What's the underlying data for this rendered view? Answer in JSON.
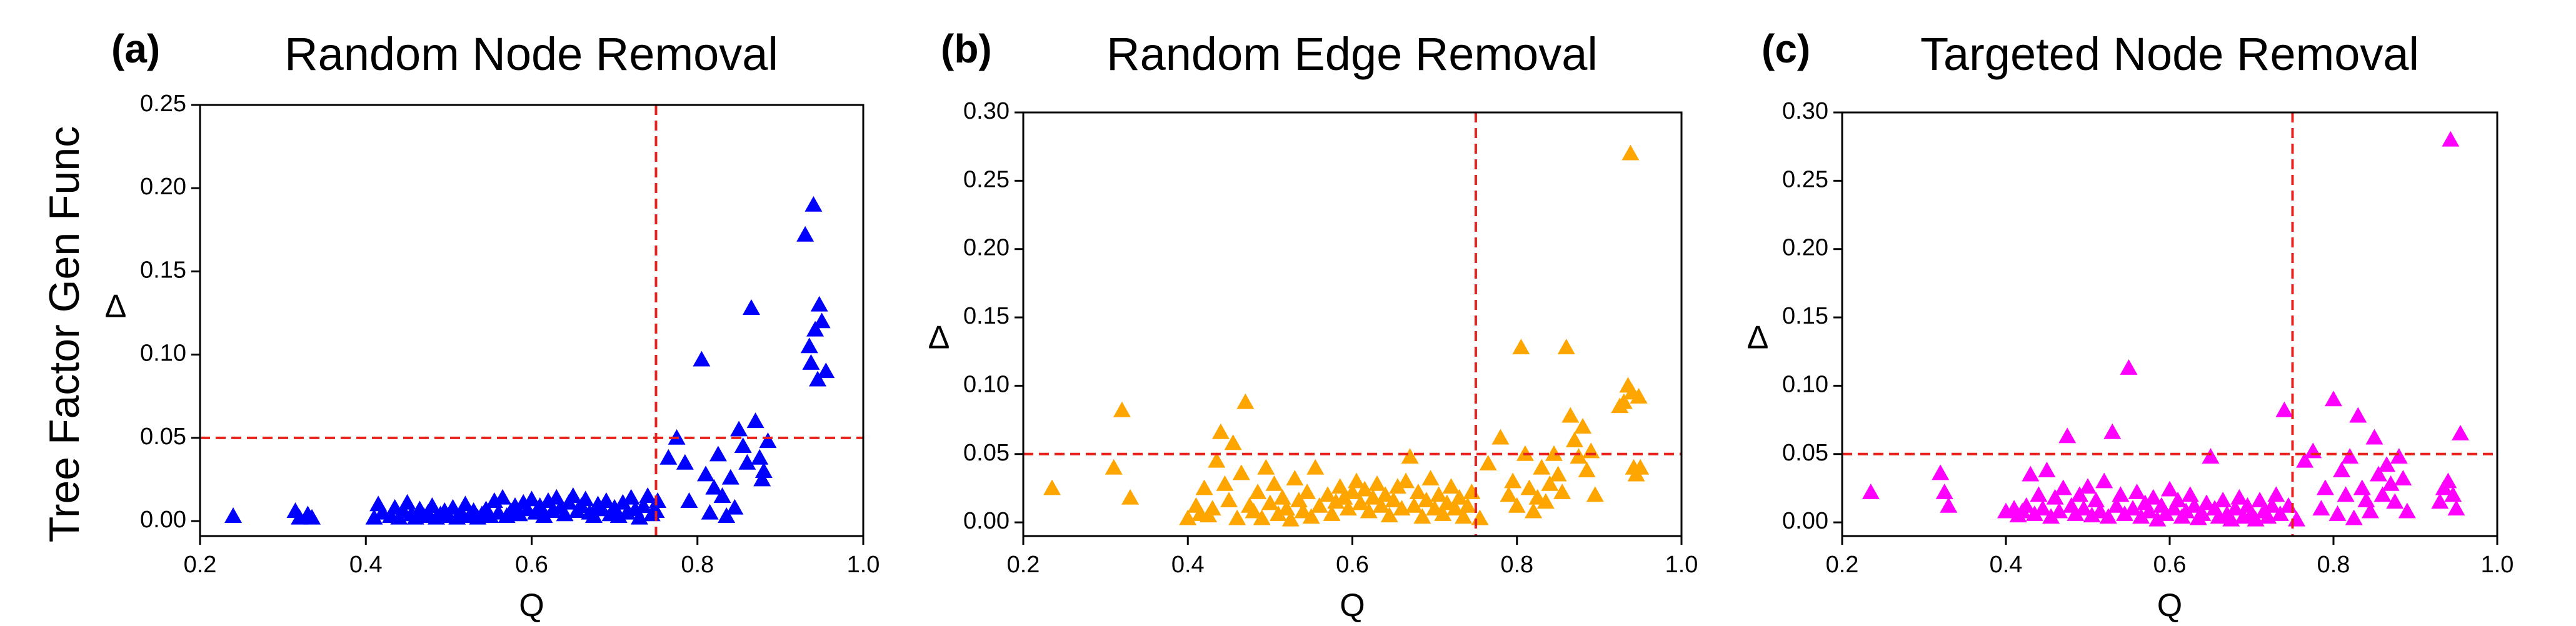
{
  "row_label": "Tree Factor Gen Func",
  "threshold_color": "#e8211c",
  "chart_data": [
    {
      "type": "scatter",
      "panel": "(a)",
      "title": "Random Node Removal",
      "xlabel": "Q",
      "ylabel": "Δ",
      "xlim": [
        0.2,
        1.0
      ],
      "ylim": [
        -0.009,
        0.25
      ],
      "xticks": [
        "0.2",
        "0.4",
        "0.6",
        "0.8",
        "1.0"
      ],
      "yticks": [
        "0.00",
        "0.05",
        "0.10",
        "0.15",
        "0.20",
        "0.25"
      ],
      "marker": "triangle",
      "color": "#0000ff",
      "thresholds": {
        "x": 0.75,
        "y": 0.05
      },
      "grid": false,
      "points": [
        [
          0.24,
          0.003
        ],
        [
          0.315,
          0.006
        ],
        [
          0.32,
          0.002
        ],
        [
          0.33,
          0.004
        ],
        [
          0.335,
          0.002
        ],
        [
          0.41,
          0.002
        ],
        [
          0.415,
          0.01
        ],
        [
          0.42,
          0.005
        ],
        [
          0.43,
          0.003
        ],
        [
          0.435,
          0.008
        ],
        [
          0.44,
          0.002
        ],
        [
          0.445,
          0.006
        ],
        [
          0.45,
          0.011
        ],
        [
          0.455,
          0.004
        ],
        [
          0.46,
          0.002
        ],
        [
          0.465,
          0.007
        ],
        [
          0.47,
          0.003
        ],
        [
          0.475,
          0.005
        ],
        [
          0.48,
          0.009
        ],
        [
          0.485,
          0.002
        ],
        [
          0.49,
          0.004
        ],
        [
          0.495,
          0.006
        ],
        [
          0.5,
          0.003
        ],
        [
          0.505,
          0.008
        ],
        [
          0.51,
          0.002
        ],
        [
          0.515,
          0.005
        ],
        [
          0.52,
          0.01
        ],
        [
          0.525,
          0.003
        ],
        [
          0.53,
          0.006
        ],
        [
          0.535,
          0.002
        ],
        [
          0.54,
          0.004
        ],
        [
          0.545,
          0.007
        ],
        [
          0.55,
          0.003
        ],
        [
          0.555,
          0.012
        ],
        [
          0.56,
          0.005
        ],
        [
          0.565,
          0.014
        ],
        [
          0.57,
          0.003
        ],
        [
          0.575,
          0.006
        ],
        [
          0.58,
          0.009
        ],
        [
          0.585,
          0.004
        ],
        [
          0.59,
          0.011
        ],
        [
          0.595,
          0.007
        ],
        [
          0.6,
          0.013
        ],
        [
          0.605,
          0.005
        ],
        [
          0.61,
          0.009
        ],
        [
          0.615,
          0.003
        ],
        [
          0.62,
          0.012
        ],
        [
          0.625,
          0.006
        ],
        [
          0.63,
          0.014
        ],
        [
          0.635,
          0.008
        ],
        [
          0.64,
          0.004
        ],
        [
          0.645,
          0.011
        ],
        [
          0.65,
          0.015
        ],
        [
          0.655,
          0.006
        ],
        [
          0.66,
          0.009
        ],
        [
          0.665,
          0.013
        ],
        [
          0.67,
          0.005
        ],
        [
          0.675,
          0.003
        ],
        [
          0.68,
          0.01
        ],
        [
          0.685,
          0.007
        ],
        [
          0.69,
          0.012
        ],
        [
          0.695,
          0.004
        ],
        [
          0.7,
          0.008
        ],
        [
          0.705,
          0.003
        ],
        [
          0.71,
          0.011
        ],
        [
          0.715,
          0.005
        ],
        [
          0.72,
          0.014
        ],
        [
          0.725,
          0.007
        ],
        [
          0.73,
          0.002
        ],
        [
          0.735,
          0.009
        ],
        [
          0.74,
          0.015
        ],
        [
          0.745,
          0.004
        ],
        [
          0.75,
          0.006
        ],
        [
          0.752,
          0.012
        ],
        [
          0.765,
          0.038
        ],
        [
          0.775,
          0.05
        ],
        [
          0.785,
          0.035
        ],
        [
          0.79,
          0.012
        ],
        [
          0.805,
          0.097
        ],
        [
          0.81,
          0.028
        ],
        [
          0.815,
          0.005
        ],
        [
          0.82,
          0.02
        ],
        [
          0.825,
          0.04
        ],
        [
          0.83,
          0.015
        ],
        [
          0.835,
          0.003
        ],
        [
          0.84,
          0.026
        ],
        [
          0.845,
          0.008
        ],
        [
          0.85,
          0.055
        ],
        [
          0.855,
          0.045
        ],
        [
          0.86,
          0.035
        ],
        [
          0.865,
          0.128
        ],
        [
          0.87,
          0.06
        ],
        [
          0.875,
          0.038
        ],
        [
          0.878,
          0.025
        ],
        [
          0.88,
          0.03
        ],
        [
          0.885,
          0.048
        ],
        [
          0.93,
          0.172
        ],
        [
          0.935,
          0.105
        ],
        [
          0.937,
          0.095
        ],
        [
          0.94,
          0.19
        ],
        [
          0.942,
          0.115
        ],
        [
          0.945,
          0.085
        ],
        [
          0.947,
          0.13
        ],
        [
          0.95,
          0.12
        ],
        [
          0.955,
          0.09
        ]
      ]
    },
    {
      "type": "scatter",
      "panel": "(b)",
      "title": "Random Edge Removal",
      "xlabel": "Q",
      "ylabel": "Δ",
      "xlim": [
        0.2,
        1.0
      ],
      "ylim": [
        -0.01,
        0.3
      ],
      "xticks": [
        "0.2",
        "0.4",
        "0.6",
        "0.8",
        "1.0"
      ],
      "yticks": [
        "0.00",
        "0.05",
        "0.10",
        "0.15",
        "0.20",
        "0.25",
        "0.30"
      ],
      "marker": "triangle",
      "color": "#ffa500",
      "thresholds": {
        "x": 0.75,
        "y": 0.05
      },
      "grid": false,
      "points": [
        [
          0.235,
          0.025
        ],
        [
          0.31,
          0.04
        ],
        [
          0.32,
          0.082
        ],
        [
          0.33,
          0.018
        ],
        [
          0.4,
          0.003
        ],
        [
          0.41,
          0.012
        ],
        [
          0.415,
          0.006
        ],
        [
          0.42,
          0.025
        ],
        [
          0.425,
          0.005
        ],
        [
          0.43,
          0.01
        ],
        [
          0.435,
          0.045
        ],
        [
          0.44,
          0.066
        ],
        [
          0.445,
          0.028
        ],
        [
          0.45,
          0.016
        ],
        [
          0.455,
          0.058
        ],
        [
          0.46,
          0.003
        ],
        [
          0.465,
          0.036
        ],
        [
          0.47,
          0.088
        ],
        [
          0.475,
          0.012
        ],
        [
          0.48,
          0.008
        ],
        [
          0.485,
          0.022
        ],
        [
          0.49,
          0.003
        ],
        [
          0.495,
          0.04
        ],
        [
          0.5,
          0.014
        ],
        [
          0.505,
          0.028
        ],
        [
          0.51,
          0.006
        ],
        [
          0.515,
          0.018
        ],
        [
          0.52,
          0.01
        ],
        [
          0.525,
          0.002
        ],
        [
          0.53,
          0.032
        ],
        [
          0.535,
          0.016
        ],
        [
          0.54,
          0.008
        ],
        [
          0.545,
          0.022
        ],
        [
          0.55,
          0.004
        ],
        [
          0.555,
          0.04
        ],
        [
          0.56,
          0.012
        ],
        [
          0.57,
          0.02
        ],
        [
          0.575,
          0.006
        ],
        [
          0.58,
          0.015
        ],
        [
          0.585,
          0.026
        ],
        [
          0.59,
          0.018
        ],
        [
          0.595,
          0.01
        ],
        [
          0.6,
          0.022
        ],
        [
          0.605,
          0.03
        ],
        [
          0.61,
          0.014
        ],
        [
          0.615,
          0.024
        ],
        [
          0.62,
          0.008
        ],
        [
          0.625,
          0.018
        ],
        [
          0.63,
          0.028
        ],
        [
          0.635,
          0.012
        ],
        [
          0.64,
          0.02
        ],
        [
          0.645,
          0.005
        ],
        [
          0.65,
          0.016
        ],
        [
          0.655,
          0.026
        ],
        [
          0.66,
          0.01
        ],
        [
          0.665,
          0.03
        ],
        [
          0.67,
          0.048
        ],
        [
          0.675,
          0.012
        ],
        [
          0.68,
          0.022
        ],
        [
          0.685,
          0.004
        ],
        [
          0.69,
          0.016
        ],
        [
          0.695,
          0.032
        ],
        [
          0.7,
          0.01
        ],
        [
          0.705,
          0.02
        ],
        [
          0.71,
          0.006
        ],
        [
          0.715,
          0.014
        ],
        [
          0.72,
          0.026
        ],
        [
          0.725,
          0.01
        ],
        [
          0.73,
          0.018
        ],
        [
          0.735,
          0.004
        ],
        [
          0.74,
          0.012
        ],
        [
          0.745,
          0.022
        ],
        [
          0.755,
          0.003
        ],
        [
          0.765,
          0.043
        ],
        [
          0.78,
          0.062
        ],
        [
          0.79,
          0.02
        ],
        [
          0.795,
          0.03
        ],
        [
          0.8,
          0.012
        ],
        [
          0.805,
          0.128
        ],
        [
          0.81,
          0.05
        ],
        [
          0.815,
          0.025
        ],
        [
          0.82,
          0.008
        ],
        [
          0.825,
          0.018
        ],
        [
          0.83,
          0.04
        ],
        [
          0.835,
          0.015
        ],
        [
          0.84,
          0.028
        ],
        [
          0.845,
          0.05
        ],
        [
          0.85,
          0.035
        ],
        [
          0.855,
          0.022
        ],
        [
          0.86,
          0.128
        ],
        [
          0.865,
          0.078
        ],
        [
          0.87,
          0.06
        ],
        [
          0.875,
          0.048
        ],
        [
          0.88,
          0.07
        ],
        [
          0.885,
          0.038
        ],
        [
          0.89,
          0.052
        ],
        [
          0.895,
          0.02
        ],
        [
          0.925,
          0.085
        ],
        [
          0.93,
          0.088
        ],
        [
          0.935,
          0.1
        ],
        [
          0.938,
          0.27
        ],
        [
          0.94,
          0.095
        ],
        [
          0.942,
          0.04
        ],
        [
          0.945,
          0.035
        ],
        [
          0.948,
          0.092
        ],
        [
          0.95,
          0.04
        ]
      ]
    },
    {
      "type": "scatter",
      "panel": "(c)",
      "title": "Targeted Node Removal",
      "xlabel": "Q",
      "ylabel": "Δ",
      "xlim": [
        0.2,
        1.0
      ],
      "ylim": [
        -0.01,
        0.3
      ],
      "xticks": [
        "0.2",
        "0.4",
        "0.6",
        "0.8",
        "1.0"
      ],
      "yticks": [
        "0.00",
        "0.05",
        "0.10",
        "0.15",
        "0.20",
        "0.25",
        "0.30"
      ],
      "marker": "triangle",
      "color": "#ff00ff",
      "thresholds": {
        "x": 0.75,
        "y": 0.05
      },
      "grid": false,
      "points": [
        [
          0.235,
          0.022
        ],
        [
          0.32,
          0.036
        ],
        [
          0.325,
          0.022
        ],
        [
          0.33,
          0.012
        ],
        [
          0.4,
          0.008
        ],
        [
          0.41,
          0.01
        ],
        [
          0.415,
          0.005
        ],
        [
          0.42,
          0.008
        ],
        [
          0.425,
          0.012
        ],
        [
          0.43,
          0.035
        ],
        [
          0.435,
          0.006
        ],
        [
          0.44,
          0.02
        ],
        [
          0.445,
          0.01
        ],
        [
          0.45,
          0.038
        ],
        [
          0.455,
          0.004
        ],
        [
          0.46,
          0.018
        ],
        [
          0.465,
          0.008
        ],
        [
          0.47,
          0.025
        ],
        [
          0.475,
          0.063
        ],
        [
          0.48,
          0.012
        ],
        [
          0.485,
          0.006
        ],
        [
          0.49,
          0.02
        ],
        [
          0.495,
          0.01
        ],
        [
          0.5,
          0.026
        ],
        [
          0.505,
          0.005
        ],
        [
          0.51,
          0.016
        ],
        [
          0.515,
          0.008
        ],
        [
          0.52,
          0.03
        ],
        [
          0.525,
          0.004
        ],
        [
          0.53,
          0.066
        ],
        [
          0.535,
          0.012
        ],
        [
          0.54,
          0.02
        ],
        [
          0.545,
          0.006
        ],
        [
          0.55,
          0.113
        ],
        [
          0.555,
          0.01
        ],
        [
          0.56,
          0.022
        ],
        [
          0.565,
          0.004
        ],
        [
          0.57,
          0.014
        ],
        [
          0.575,
          0.008
        ],
        [
          0.58,
          0.018
        ],
        [
          0.585,
          0.002
        ],
        [
          0.59,
          0.012
        ],
        [
          0.595,
          0.006
        ],
        [
          0.6,
          0.024
        ],
        [
          0.605,
          0.01
        ],
        [
          0.61,
          0.016
        ],
        [
          0.615,
          0.004
        ],
        [
          0.62,
          0.008
        ],
        [
          0.625,
          0.02
        ],
        [
          0.63,
          0.012
        ],
        [
          0.635,
          0.003
        ],
        [
          0.64,
          0.006
        ],
        [
          0.645,
          0.014
        ],
        [
          0.65,
          0.048
        ],
        [
          0.655,
          0.01
        ],
        [
          0.66,
          0.004
        ],
        [
          0.665,
          0.016
        ],
        [
          0.67,
          0.006
        ],
        [
          0.675,
          0.002
        ],
        [
          0.68,
          0.01
        ],
        [
          0.685,
          0.018
        ],
        [
          0.69,
          0.004
        ],
        [
          0.695,
          0.012
        ],
        [
          0.7,
          0.006
        ],
        [
          0.705,
          0.002
        ],
        [
          0.71,
          0.016
        ],
        [
          0.715,
          0.008
        ],
        [
          0.72,
          0.004
        ],
        [
          0.725,
          0.012
        ],
        [
          0.73,
          0.02
        ],
        [
          0.735,
          0.006
        ],
        [
          0.74,
          0.082
        ],
        [
          0.745,
          0.012
        ],
        [
          0.755,
          0.002
        ],
        [
          0.765,
          0.045
        ],
        [
          0.775,
          0.052
        ],
        [
          0.785,
          0.01
        ],
        [
          0.79,
          0.025
        ],
        [
          0.8,
          0.09
        ],
        [
          0.805,
          0.006
        ],
        [
          0.81,
          0.038
        ],
        [
          0.815,
          0.02
        ],
        [
          0.82,
          0.048
        ],
        [
          0.825,
          0.003
        ],
        [
          0.83,
          0.078
        ],
        [
          0.835,
          0.025
        ],
        [
          0.84,
          0.016
        ],
        [
          0.845,
          0.008
        ],
        [
          0.85,
          0.062
        ],
        [
          0.855,
          0.035
        ],
        [
          0.86,
          0.02
        ],
        [
          0.865,
          0.042
        ],
        [
          0.87,
          0.028
        ],
        [
          0.875,
          0.015
        ],
        [
          0.88,
          0.048
        ],
        [
          0.885,
          0.032
        ],
        [
          0.89,
          0.008
        ],
        [
          0.93,
          0.015
        ],
        [
          0.935,
          0.025
        ],
        [
          0.94,
          0.03
        ],
        [
          0.943,
          0.28
        ],
        [
          0.946,
          0.02
        ],
        [
          0.95,
          0.01
        ],
        [
          0.955,
          0.065
        ]
      ]
    }
  ]
}
